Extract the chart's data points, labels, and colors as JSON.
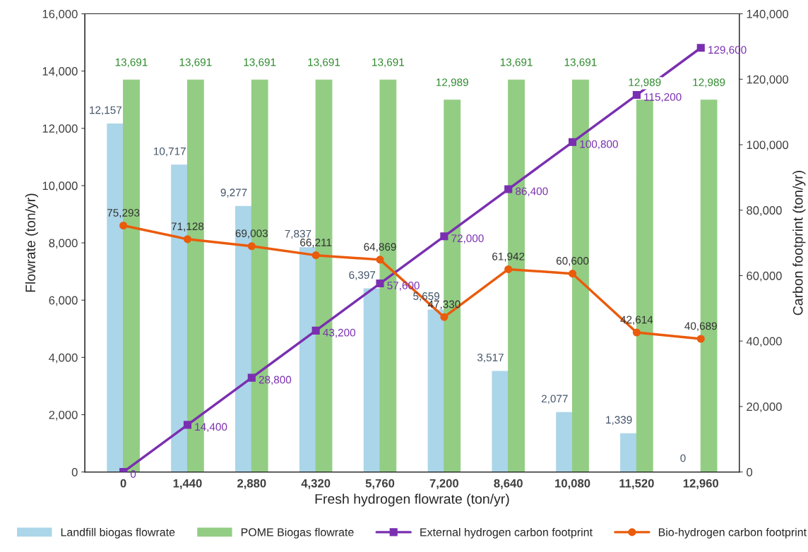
{
  "chart_data": {
    "type": "bar",
    "xlabel": "Fresh hydrogen flowrate (ton/yr)",
    "ylabel": "Flowrate (ton/yr)",
    "y2label": "Carbon footprint (ton/yr)",
    "categories": [
      "0",
      "1,440",
      "2,880",
      "4,320",
      "5,760",
      "7,200",
      "8,640",
      "10,080",
      "11,520",
      "12,960"
    ],
    "series": [
      {
        "name": "Landfill biogas flowrate",
        "type": "bar",
        "color": "#abd5e9",
        "values": [
          12157,
          10717,
          9277,
          7837,
          6397,
          5659,
          3517,
          2077,
          1339,
          0
        ],
        "value_labels": [
          "12,157",
          "10,717",
          "9,277",
          "7,837",
          "6,397",
          "5,659",
          "3,517",
          "2,077",
          "1,339",
          "0"
        ]
      },
      {
        "name": "POME Biogas flowrate",
        "type": "bar",
        "color": "#92cd83",
        "values": [
          13691,
          13691,
          13691,
          13691,
          13691,
          12989,
          13691,
          13691,
          12989,
          12989
        ],
        "value_labels": [
          "13,691",
          "13,691",
          "13,691",
          "13,691",
          "13,691",
          "12,989",
          "13,691",
          "13,691",
          "12,989",
          "12,989"
        ]
      },
      {
        "name": "External hydrogen carbon footprint",
        "type": "line",
        "axis": "y2",
        "color": "#7a2fb0",
        "marker": "square",
        "values": [
          0,
          14400,
          28800,
          43200,
          57600,
          72000,
          86400,
          100800,
          115200,
          129600
        ],
        "value_labels": [
          "0",
          "14,400",
          "28,800",
          "43,200",
          "57,600",
          "72,000",
          "86,400",
          "100,800",
          "115,200",
          "129,600"
        ]
      },
      {
        "name": "Bio-hydrogen carbon footprint",
        "type": "line",
        "axis": "y2",
        "color": "#ea5b0c",
        "marker": "circle",
        "values": [
          75293,
          71128,
          69003,
          66211,
          64869,
          47330,
          61942,
          60600,
          42614,
          40689
        ],
        "value_labels": [
          "75,293",
          "71,128",
          "69,003",
          "66,211",
          "64,869",
          "47,330",
          "61,942",
          "60,600",
          "42,614",
          "40,689"
        ]
      }
    ],
    "ylim": [
      0,
      16000
    ],
    "yticks": [
      {
        "value": 0,
        "label": "0"
      },
      {
        "value": 2000,
        "label": "2,000"
      },
      {
        "value": 4000,
        "label": "4,000"
      },
      {
        "value": 6000,
        "label": "6,000"
      },
      {
        "value": 8000,
        "label": "8,000"
      },
      {
        "value": 10000,
        "label": "10,000"
      },
      {
        "value": 12000,
        "label": "12,000"
      },
      {
        "value": 14000,
        "label": "14,000"
      },
      {
        "value": 16000,
        "label": "16,000"
      }
    ],
    "y2lim": [
      0,
      140000
    ],
    "y2ticks": [
      {
        "value": 0,
        "label": "0"
      },
      {
        "value": 20000,
        "label": "20,000"
      },
      {
        "value": 40000,
        "label": "40,000"
      },
      {
        "value": 60000,
        "label": "60,000"
      },
      {
        "value": 80000,
        "label": "80,000"
      },
      {
        "value": 100000,
        "label": "100,000"
      },
      {
        "value": 120000,
        "label": "120,000"
      },
      {
        "value": 140000,
        "label": "140,000"
      }
    ],
    "grid": false,
    "legend": "bottom"
  }
}
